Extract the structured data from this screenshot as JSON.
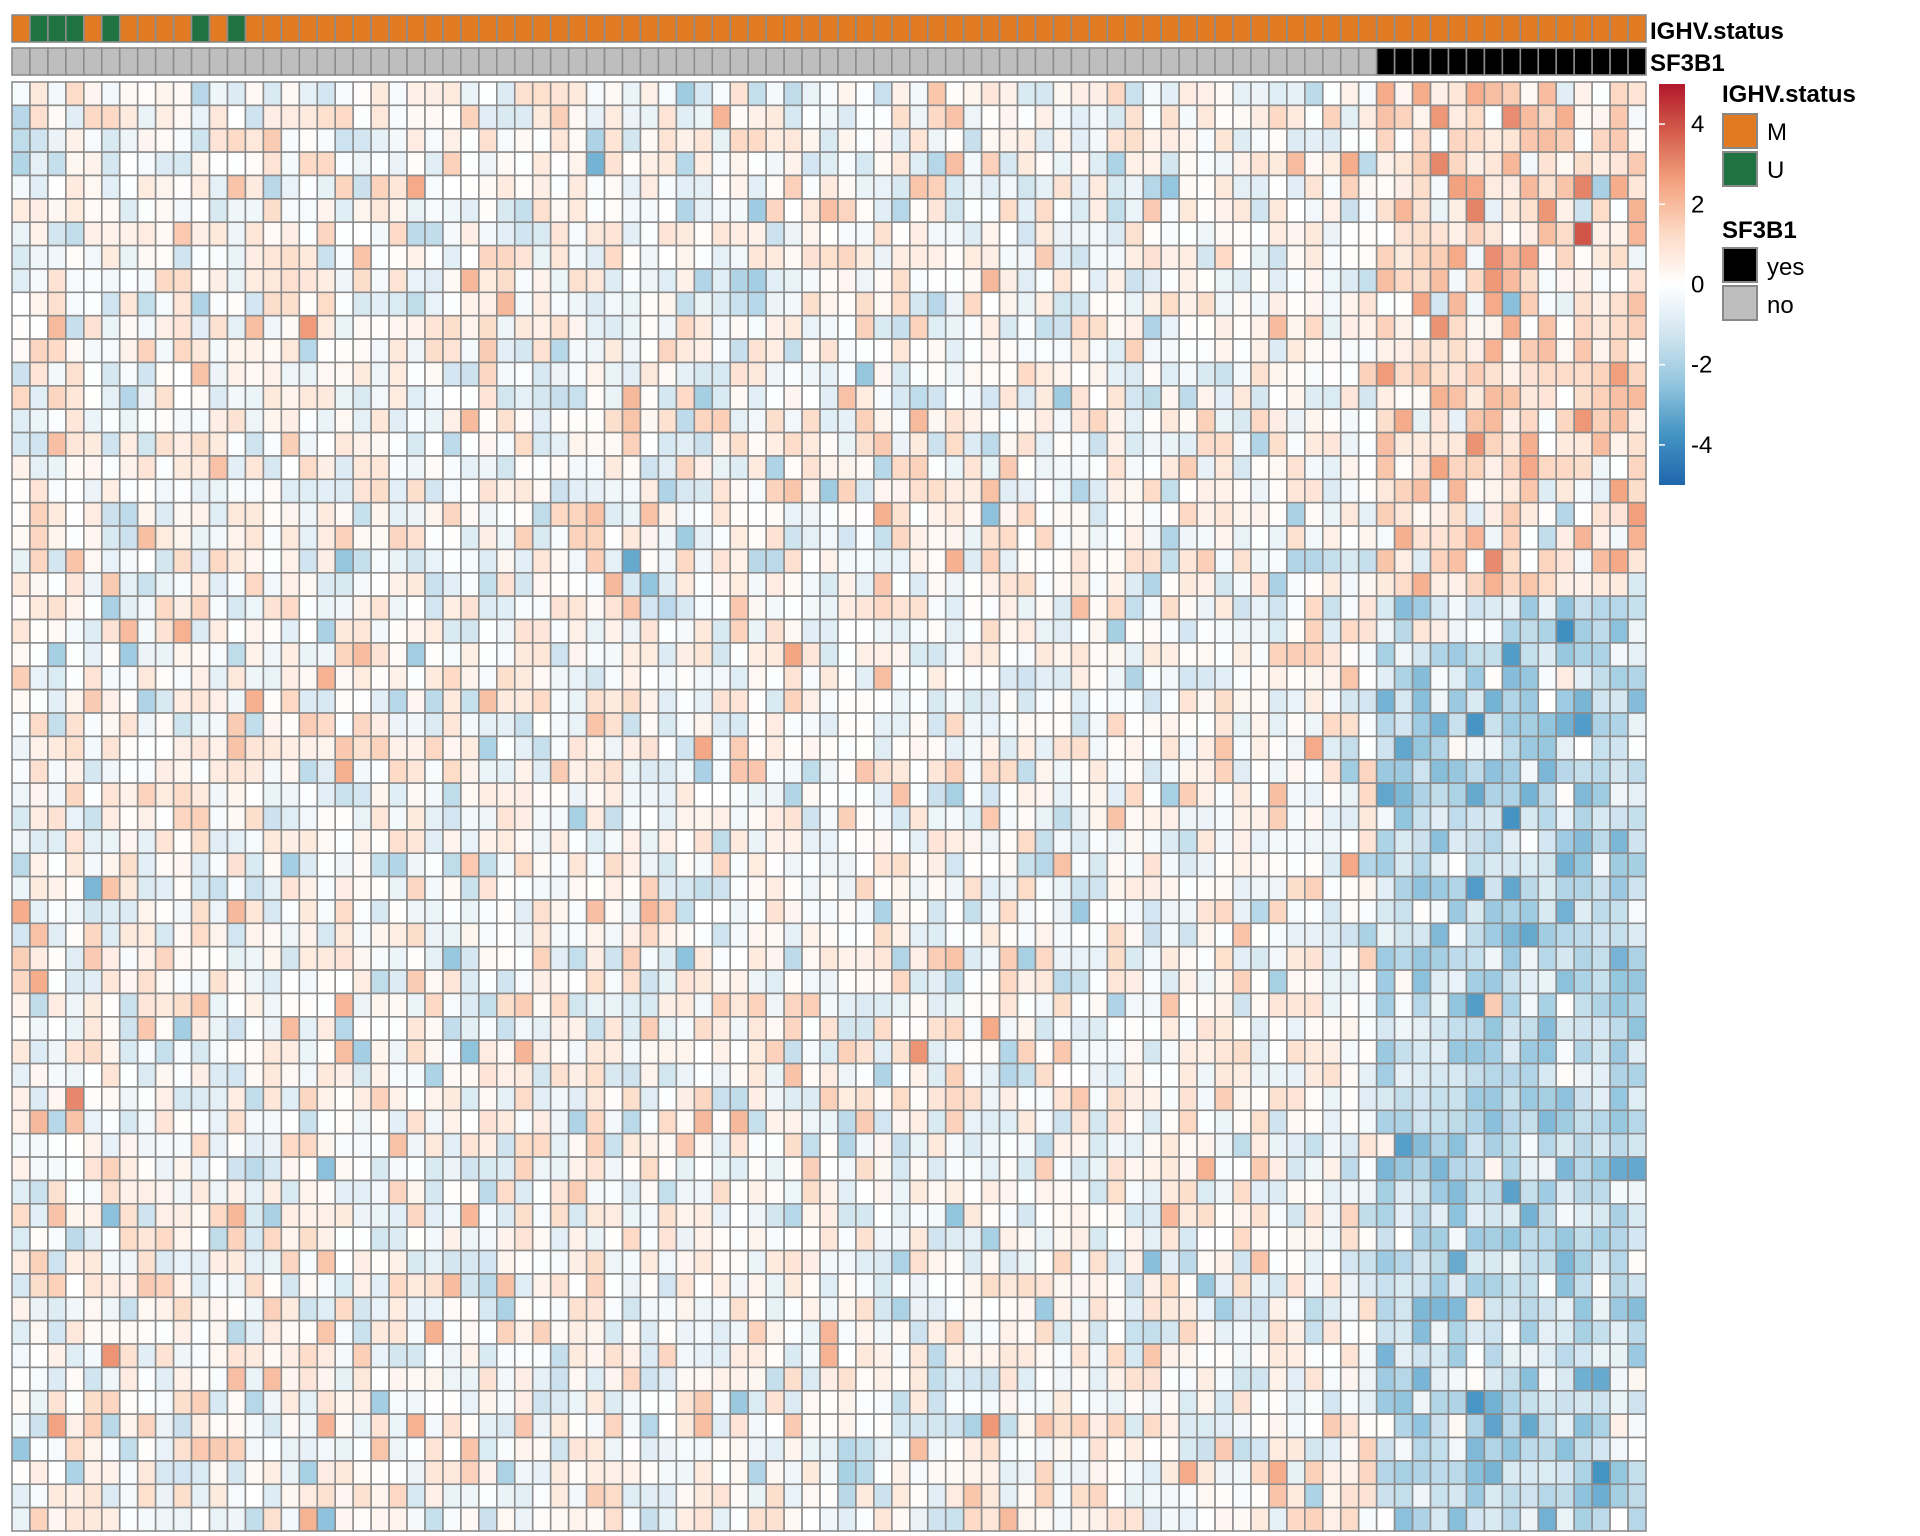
{
  "chart_data": {
    "type": "heatmap",
    "n_columns": 91,
    "n_rows": 62,
    "value_range": [
      -5,
      5
    ],
    "colorbar": {
      "ticks": [
        4,
        2,
        0,
        -2,
        -4
      ],
      "ramp": [
        "#2166AC",
        "#4393C3",
        "#92C5DE",
        "#D1E5F0",
        "#FFFFFF",
        "#FDDBC7",
        "#F4A582",
        "#D6604D",
        "#B2182B"
      ]
    },
    "annotations": [
      {
        "name": "IGHV.status",
        "label": "IGHV.status",
        "levels": [
          {
            "key": "M",
            "label": "M",
            "color": "#E07B24"
          },
          {
            "key": "U",
            "label": "U",
            "color": "#1E7340"
          }
        ],
        "values": [
          "M",
          "U",
          "U",
          "U",
          "M",
          "U",
          "M",
          "M",
          "M",
          "M",
          "U",
          "M",
          "U",
          "M",
          "M",
          "M",
          "M",
          "M",
          "M",
          "M",
          "M",
          "M",
          "M",
          "M",
          "M",
          "M",
          "M",
          "M",
          "M",
          "M",
          "M",
          "M",
          "M",
          "M",
          "M",
          "M",
          "M",
          "M",
          "M",
          "M",
          "M",
          "M",
          "M",
          "M",
          "M",
          "M",
          "M",
          "M",
          "M",
          "M",
          "M",
          "M",
          "M",
          "M",
          "M",
          "M",
          "M",
          "M",
          "M",
          "M",
          "M",
          "M",
          "M",
          "M",
          "M",
          "M",
          "M",
          "M",
          "M",
          "M",
          "M",
          "M",
          "M",
          "M",
          "M",
          "M",
          "M",
          "M",
          "M",
          "M",
          "M",
          "M",
          "M",
          "M",
          "M",
          "M",
          "M",
          "M",
          "M",
          "M",
          "M"
        ]
      },
      {
        "name": "SF3B1",
        "label": "SF3B1",
        "levels": [
          {
            "key": "yes",
            "label": "yes",
            "color": "#000000"
          },
          {
            "key": "no",
            "label": "no",
            "color": "#BEBEBE"
          }
        ],
        "first_yes_column": 76
      }
    ],
    "sf3b1_signature": {
      "up_rows": [
        0,
        21
      ],
      "down_rows": [
        22,
        61
      ]
    }
  }
}
